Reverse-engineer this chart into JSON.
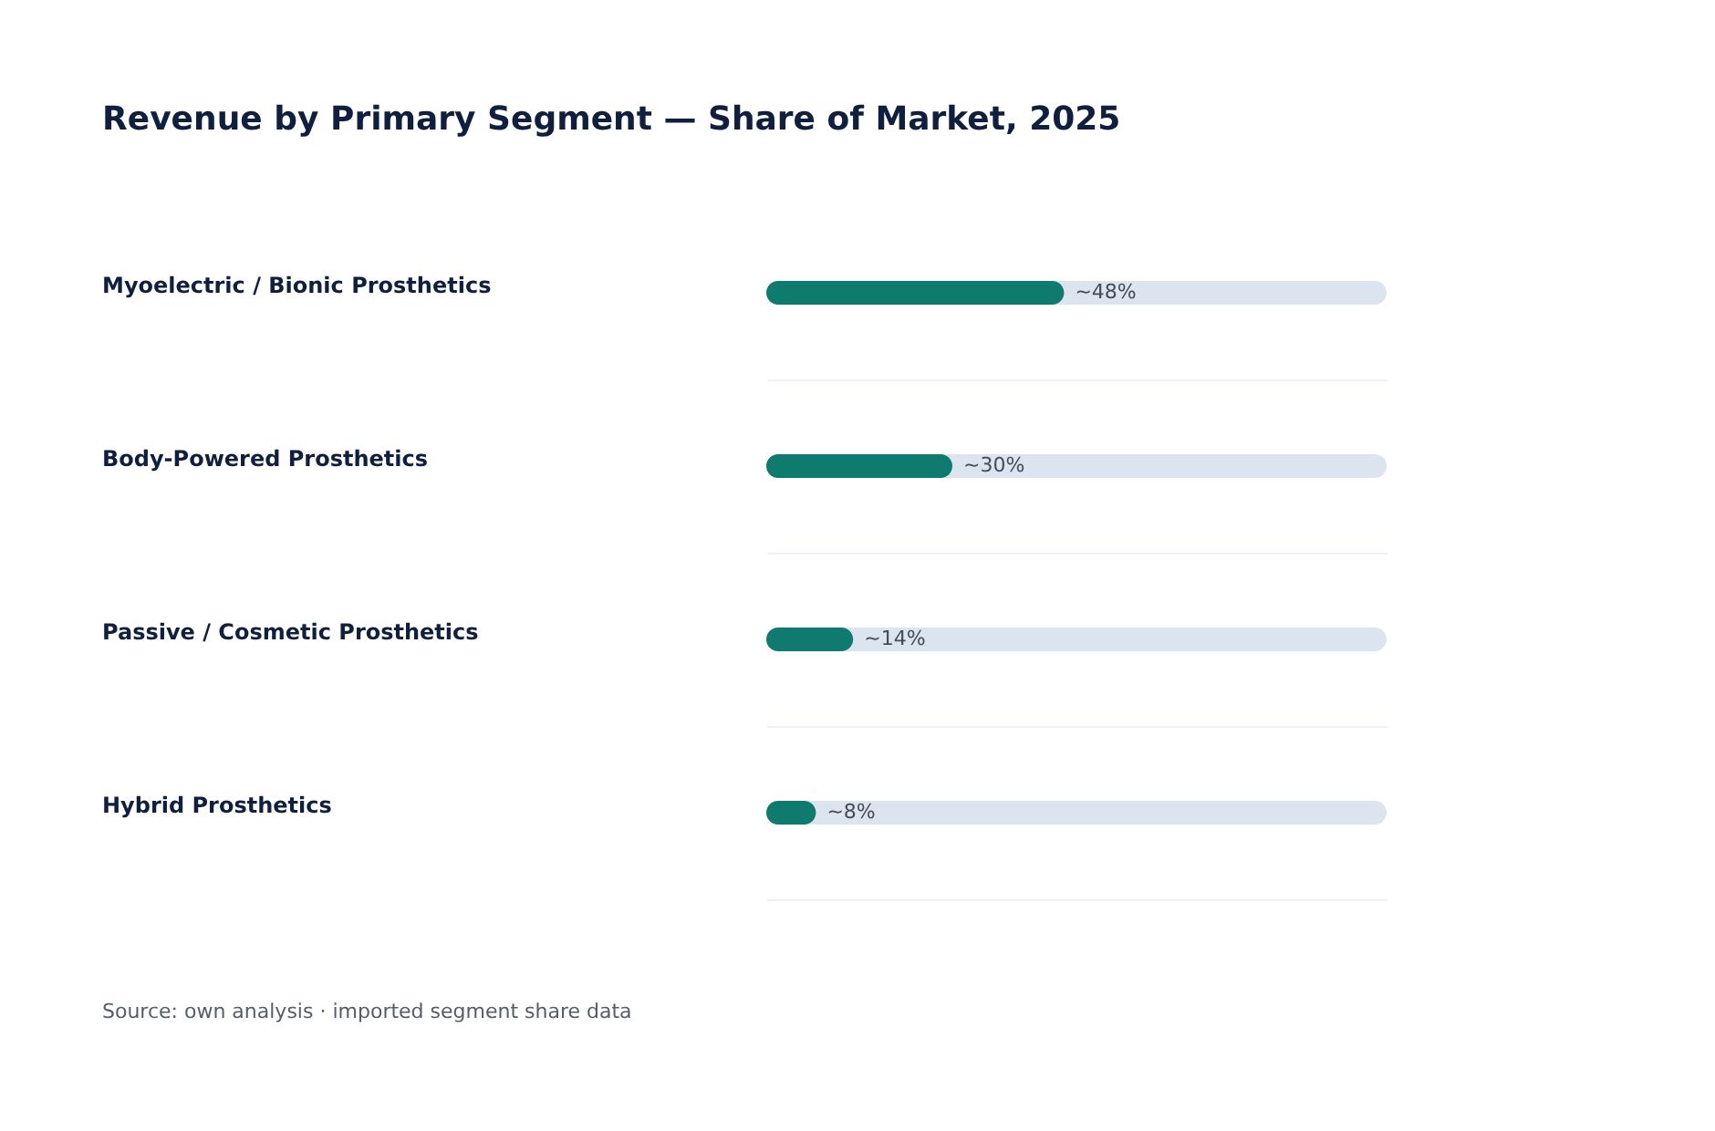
{
  "chart_data": {
    "type": "bar",
    "orientation": "horizontal",
    "title": "Revenue by Primary Segment — Share of Market, 2025",
    "categories": [
      "Myoelectric / Bionic Prosthetics",
      "Body-Powered Prosthetics",
      "Passive / Cosmetic Prosthetics",
      "Hybrid Prosthetics"
    ],
    "values": [
      48,
      30,
      14,
      8
    ],
    "value_labels": [
      "~48%",
      "~30%",
      "~14%",
      "~8%"
    ],
    "color": "#0f7b6f",
    "xlim": [
      0,
      100
    ],
    "tick_labels": "y",
    "grid": "y",
    "annotations": [
      "Source: own analysis · imported segment share data"
    ]
  }
}
